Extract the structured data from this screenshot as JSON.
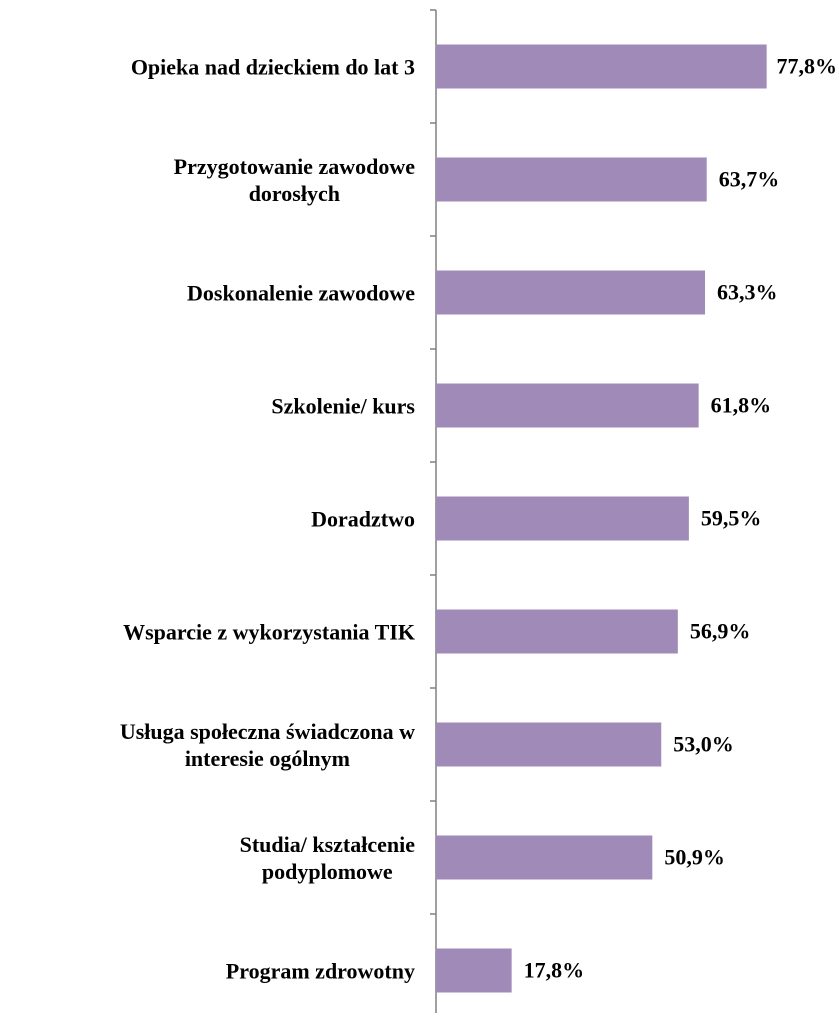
{
  "chart_data": {
    "type": "barh",
    "categories": [
      "Opieka nad dzieckiem do lat 3",
      "Przygotowanie zawodowe\ndorosłych",
      "Doskonalenie zawodowe",
      "Szkolenie/ kurs",
      "Doradztwo",
      "Wsparcie z wykorzystania TIK",
      "Usługa społeczna świadczona w\ninteresie ogólnym",
      "Studia/ kształcenie\npodyplomowe",
      "Program zdrowotny"
    ],
    "values": [
      77.8,
      63.7,
      63.3,
      61.8,
      59.5,
      56.9,
      53.0,
      50.9,
      17.8
    ],
    "value_labels": [
      "77,8%",
      "63,7%",
      "63,3%",
      "61,8%",
      "59,5%",
      "56,9%",
      "53,0%",
      "50,9%",
      "17,8%"
    ],
    "color": "#a08ab8"
  }
}
